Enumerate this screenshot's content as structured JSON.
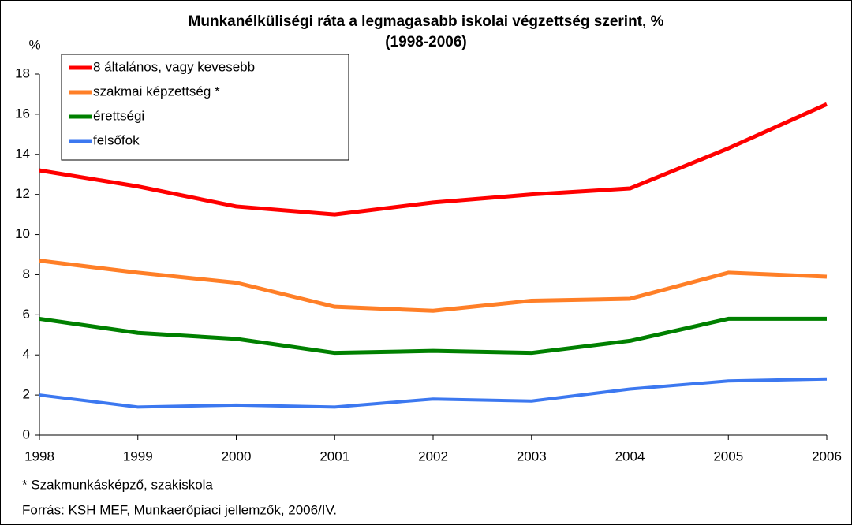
{
  "chart_data": {
    "type": "line",
    "title": "Munkanélküliségi ráta a legmagasabb iskolai végzettség szerint, %",
    "subtitle": "(1998-2006)",
    "y_label": "%",
    "x": [
      1998,
      1999,
      2000,
      2001,
      2002,
      2003,
      2004,
      2005,
      2006
    ],
    "xlim": [
      1998,
      2006
    ],
    "xticks": [
      1998,
      1999,
      2000,
      2001,
      2002,
      2003,
      2004,
      2005,
      2006
    ],
    "ylim": [
      0,
      18
    ],
    "yticks": [
      0,
      2,
      4,
      6,
      8,
      10,
      12,
      14,
      16,
      18
    ],
    "grid": false,
    "legend": "top-left",
    "series": [
      {
        "name": "8 általános, vagy kevesebb",
        "color": "#ff0000",
        "values": [
          13.2,
          12.4,
          11.4,
          11.0,
          11.6,
          12.0,
          12.3,
          14.3,
          16.5
        ]
      },
      {
        "name": "szakmai képzettség *",
        "color": "#ff7f27",
        "values": [
          8.7,
          8.1,
          7.6,
          6.4,
          6.2,
          6.7,
          6.8,
          8.1,
          7.9
        ]
      },
      {
        "name": "érettségi",
        "color": "#008000",
        "values": [
          5.8,
          5.1,
          4.8,
          4.1,
          4.2,
          4.1,
          4.7,
          5.8,
          5.8
        ]
      },
      {
        "name": "felsőfok",
        "color": "#3c78f0",
        "values": [
          2.0,
          1.4,
          1.5,
          1.4,
          1.8,
          1.7,
          2.3,
          2.7,
          2.8
        ]
      }
    ],
    "footnote": "* Szakmunkásképző, szakiskola",
    "source": "Forrás: KSH MEF, Munkaerőpiaci jellemzők, 2006/IV."
  }
}
